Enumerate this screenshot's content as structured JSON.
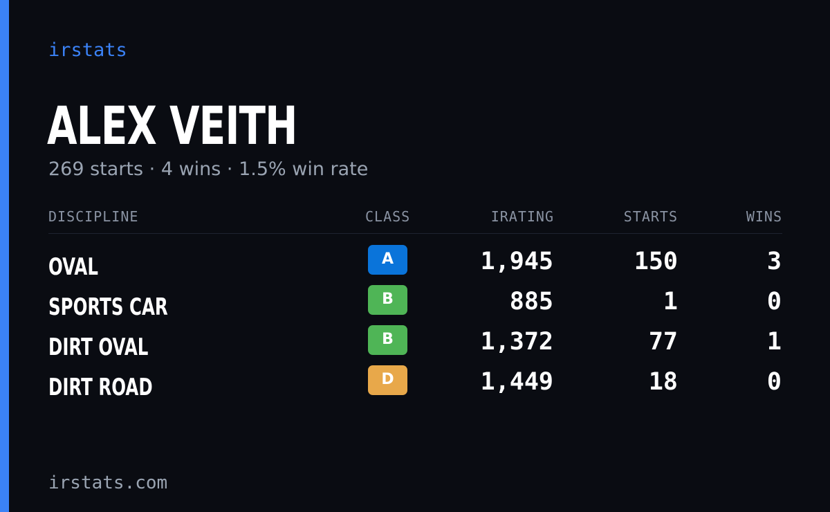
{
  "brand": "irstats",
  "driver": {
    "name": "ALEX VEITH",
    "summary": "269 starts · 4 wins · 1.5% win rate"
  },
  "table": {
    "headers": {
      "discipline": "DISCIPLINE",
      "class": "CLASS",
      "irating": "IRATING",
      "starts": "STARTS",
      "wins": "WINS"
    },
    "rows": [
      {
        "discipline": "OVAL",
        "class": "A",
        "class_color": "#0a74da",
        "irating": "1,945",
        "starts": "150",
        "wins": "3"
      },
      {
        "discipline": "SPORTS CAR",
        "class": "B",
        "class_color": "#4fb556",
        "irating": "885",
        "starts": "1",
        "wins": "0"
      },
      {
        "discipline": "DIRT OVAL",
        "class": "B",
        "class_color": "#4fb556",
        "irating": "1,372",
        "starts": "77",
        "wins": "1"
      },
      {
        "discipline": "DIRT ROAD",
        "class": "D",
        "class_color": "#e8a84a",
        "irating": "1,449",
        "starts": "18",
        "wins": "0"
      }
    ]
  },
  "footer": "irstats.com",
  "colors": {
    "background": "#0a0c12",
    "accent": "#3b82f6",
    "muted_text": "#9aa4b2"
  }
}
